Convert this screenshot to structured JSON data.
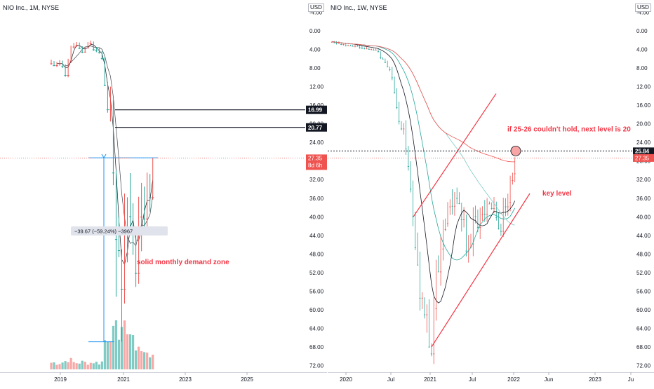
{
  "charts": [
    {
      "header": "NIO Inc., 1M, NYSE",
      "currency": "USD",
      "price_ticks": [
        "72.00",
        "68.00",
        "64.00",
        "60.00",
        "56.00",
        "52.00",
        "48.00",
        "44.00",
        "40.00",
        "36.00",
        "32.00",
        "28.00",
        "24.00",
        "20.00",
        "16.00",
        "12.00",
        "8.00",
        "4.00",
        "0.00",
        "-4.00"
      ],
      "time_ticks": [
        "2019",
        "2021",
        "2023",
        "2025"
      ],
      "last_price": {
        "value": "27.35",
        "countdown": "8d 6h",
        "color": "#ef5350"
      },
      "level_badges": [
        {
          "value": "20.77"
        },
        {
          "value": "16.99"
        }
      ],
      "measure_label": "−39.67 (−59.24%) −3967",
      "annotation": "solid monthly demand zone"
    },
    {
      "header": "NIO Inc., 1W, NYSE",
      "currency": "USD",
      "price_ticks": [
        "72.00",
        "68.00",
        "64.00",
        "60.00",
        "56.00",
        "52.00",
        "48.00",
        "44.00",
        "40.00",
        "36.00",
        "32.00",
        "28.00",
        "24.00",
        "20.00",
        "16.00",
        "12.00",
        "8.00",
        "4.00",
        "0.00",
        "-4.00"
      ],
      "time_ticks": [
        "2020",
        "Jul",
        "2021",
        "Jul",
        "2022",
        "Jun",
        "2023",
        "Ju"
      ],
      "last_price": {
        "value": "27.35",
        "countdown": "",
        "color": "#ef5350"
      },
      "level_badges": [
        {
          "value": "25.84"
        }
      ],
      "annotations": [
        "key level",
        "if 25-26 couldn't hold, next level is 20"
      ]
    }
  ],
  "chart_data": [
    {
      "type": "candlestick",
      "title": "NIO Inc., 1M, NYSE",
      "ylim": [
        -4,
        72
      ],
      "up_color": "#26a69a",
      "down_color": "#ef5350",
      "candles": [
        [
          7.0,
          7.3,
          6.2,
          6.8
        ],
        [
          6.8,
          7.6,
          6.5,
          7.4
        ],
        [
          7.4,
          7.8,
          6.7,
          7.0
        ],
        [
          7.0,
          7.5,
          6.3,
          6.6
        ],
        [
          6.6,
          8.0,
          6.4,
          7.6
        ],
        [
          7.6,
          9.9,
          7.2,
          9.5
        ],
        [
          9.5,
          10.0,
          6.0,
          6.4
        ],
        [
          6.4,
          6.9,
          3.2,
          3.4
        ],
        [
          3.4,
          3.8,
          2.6,
          3.1
        ],
        [
          3.1,
          3.5,
          2.4,
          2.6
        ],
        [
          2.6,
          3.9,
          2.5,
          3.7
        ],
        [
          3.7,
          4.8,
          3.3,
          4.5
        ],
        [
          4.5,
          4.6,
          3.4,
          3.6
        ],
        [
          3.6,
          3.8,
          2.4,
          2.7
        ],
        [
          2.7,
          3.1,
          2.1,
          2.4
        ],
        [
          2.4,
          4.3,
          2.3,
          4.0
        ],
        [
          4.0,
          4.6,
          3.5,
          4.2
        ],
        [
          4.2,
          4.9,
          3.7,
          4.6
        ],
        [
          4.6,
          6.3,
          4.3,
          5.9
        ],
        [
          5.9,
          11.9,
          5.6,
          11.6
        ],
        [
          11.6,
          17.6,
          11.0,
          16.9
        ],
        [
          16.9,
          19.5,
          12.0,
          15.3
        ],
        [
          15.3,
          33.2,
          14.9,
          30.5
        ],
        [
          30.5,
          57.2,
          30.0,
          44.8
        ],
        [
          44.8,
          48.7,
          39.9,
          47.2
        ],
        [
          47.2,
          66.9,
          47.0,
          55.6
        ],
        [
          55.6,
          58.7,
          35.0,
          47.9
        ],
        [
          47.9,
          49.8,
          35.8,
          39.0
        ],
        [
          39.0,
          43.2,
          30.6,
          39.9
        ],
        [
          39.9,
          48.2,
          37.1,
          43.1
        ],
        [
          43.1,
          55.1,
          42.5,
          52.1
        ],
        [
          52.1,
          54.4,
          35.7,
          40.0
        ],
        [
          40.0,
          47.4,
          32.7,
          36.1
        ],
        [
          36.1,
          42.6,
          33.5,
          40.4
        ],
        [
          40.4,
          42.2,
          30.5,
          33.1
        ],
        [
          33.1,
          38.9,
          30.8,
          35.8
        ],
        [
          35.8,
          36.3,
          27.3,
          27.3
        ]
      ],
      "measure": {
        "change": -39.67,
        "percent": -59.24,
        "ticks": -3967
      },
      "levels": [
        20.77,
        16.99
      ],
      "last_price": 27.35
    },
    {
      "type": "candlestick",
      "title": "NIO Inc., 1W, NYSE",
      "ylim": [
        -4,
        72
      ],
      "up_color": "#26a69a",
      "down_color": "#ef5350",
      "key_level_zone": [
        32.5,
        34.9
      ],
      "levels": [
        25.84
      ],
      "last_price": 27.35
    }
  ]
}
